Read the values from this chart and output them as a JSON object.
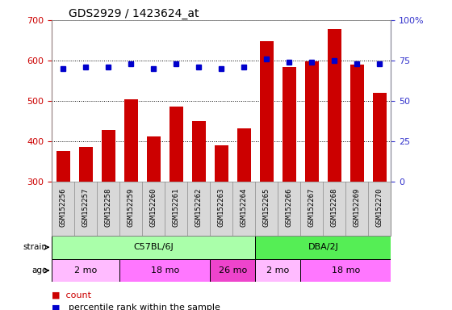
{
  "title": "GDS2929 / 1423624_at",
  "samples": [
    "GSM152256",
    "GSM152257",
    "GSM152258",
    "GSM152259",
    "GSM152260",
    "GSM152261",
    "GSM152262",
    "GSM152263",
    "GSM152264",
    "GSM152265",
    "GSM152266",
    "GSM152267",
    "GSM152268",
    "GSM152269",
    "GSM152270"
  ],
  "counts": [
    375,
    385,
    427,
    504,
    412,
    485,
    450,
    390,
    432,
    648,
    583,
    598,
    678,
    590,
    520
  ],
  "percentiles": [
    70,
    71,
    71,
    73,
    70,
    73,
    71,
    70,
    71,
    76,
    74,
    74,
    75,
    73,
    73
  ],
  "ylim": [
    300,
    700
  ],
  "ylim_right": [
    0,
    100
  ],
  "yticks_left": [
    300,
    400,
    500,
    600,
    700
  ],
  "yticks_right": [
    0,
    25,
    50,
    75,
    100
  ],
  "bar_color": "#CC0000",
  "dot_color": "#0000CC",
  "strain_groups": [
    {
      "label": "C57BL/6J",
      "start": 0,
      "end": 8,
      "color": "#AAFFAA"
    },
    {
      "label": "DBA/2J",
      "start": 9,
      "end": 14,
      "color": "#55EE55"
    }
  ],
  "age_groups": [
    {
      "label": "2 mo",
      "start": 0,
      "end": 2,
      "color": "#FFBBFF"
    },
    {
      "label": "18 mo",
      "start": 3,
      "end": 6,
      "color": "#FF77FF"
    },
    {
      "label": "26 mo",
      "start": 7,
      "end": 8,
      "color": "#EE44CC"
    },
    {
      "label": "2 mo",
      "start": 9,
      "end": 10,
      "color": "#FFBBFF"
    },
    {
      "label": "18 mo",
      "start": 11,
      "end": 14,
      "color": "#FF77FF"
    }
  ],
  "tick_label_color": "#CC0000",
  "right_tick_color": "#3333CC",
  "grid_color": "#000000",
  "legend_count_color": "#CC0000",
  "legend_pct_color": "#0000CC",
  "xlabel_bg_color": "#D8D8D8",
  "xlabel_border_color": "#888888"
}
